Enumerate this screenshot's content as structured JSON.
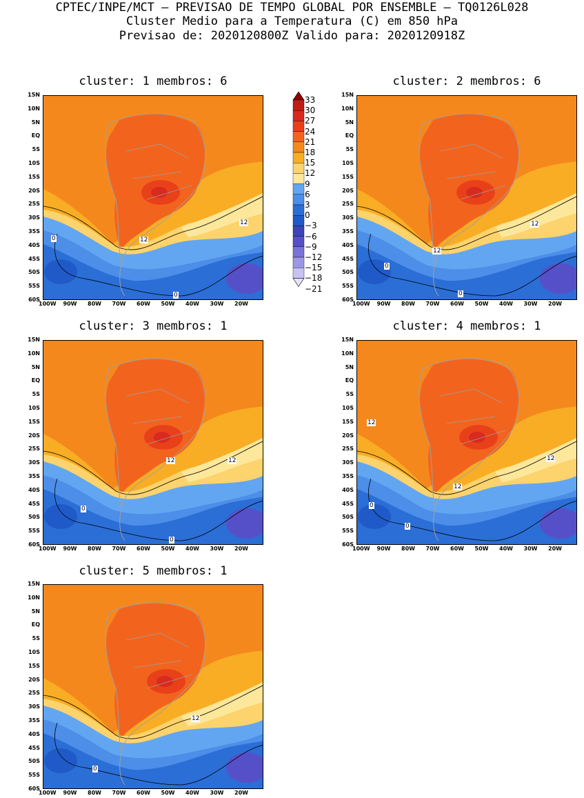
{
  "header": {
    "line1": "CPTEC/INPE/MCT – PREVISAO DE TEMPO GLOBAL POR ENSEMBLE – TQ0126L028",
    "line2": "Cluster Medio para a Temperatura (C) em 850 hPa",
    "line3": "Previsao de: 2020120800Z   Valido para: 2020120918Z"
  },
  "lat_labels": [
    "15N",
    "10N",
    "5N",
    "EQ",
    "5S",
    "10S",
    "15S",
    "20S",
    "25S",
    "30S",
    "35S",
    "40S",
    "45S",
    "50S",
    "55S",
    "60S"
  ],
  "lon_labels": [
    "100W",
    "90W",
    "80W",
    "70W",
    "60W",
    "50W",
    "40W",
    "30W",
    "20W"
  ],
  "colorbar": {
    "labels": [
      "33",
      "30",
      "27",
      "24",
      "21",
      "18",
      "15",
      "12",
      "9",
      "6",
      "3",
      "0",
      "−3",
      "−6",
      "−9",
      "−12",
      "−15",
      "−18",
      "−21"
    ],
    "colors": [
      "#8e0000",
      "#bf1c16",
      "#d82a1e",
      "#e8411a",
      "#f2641e",
      "#f5881d",
      "#f8ad24",
      "#fcd36c",
      "#fde79a",
      "#62a6f2",
      "#4c8ee8",
      "#2b6ed6",
      "#1f5ac8",
      "#3b44b8",
      "#5650c8",
      "#7a73d8",
      "#9d97e6",
      "#c7c2f3",
      "#e6e2fa"
    ]
  },
  "panels": [
    {
      "title": "cluster: 1   membros: 6",
      "contour_labels": [
        "12",
        "12",
        "0",
        "0"
      ]
    },
    {
      "title": "cluster: 2   membros: 6",
      "contour_labels": [
        "12",
        "12",
        "0",
        "0"
      ]
    },
    {
      "title": "cluster: 3   membros: 1",
      "contour_labels": [
        "12",
        "12",
        "0",
        "0"
      ]
    },
    {
      "title": "cluster: 4   membros: 1",
      "contour_labels": [
        "12",
        "12",
        "12",
        "0",
        "0"
      ]
    },
    {
      "title": "cluster: 5   membros: 1",
      "contour_labels": [
        "12",
        "0"
      ]
    }
  ]
}
